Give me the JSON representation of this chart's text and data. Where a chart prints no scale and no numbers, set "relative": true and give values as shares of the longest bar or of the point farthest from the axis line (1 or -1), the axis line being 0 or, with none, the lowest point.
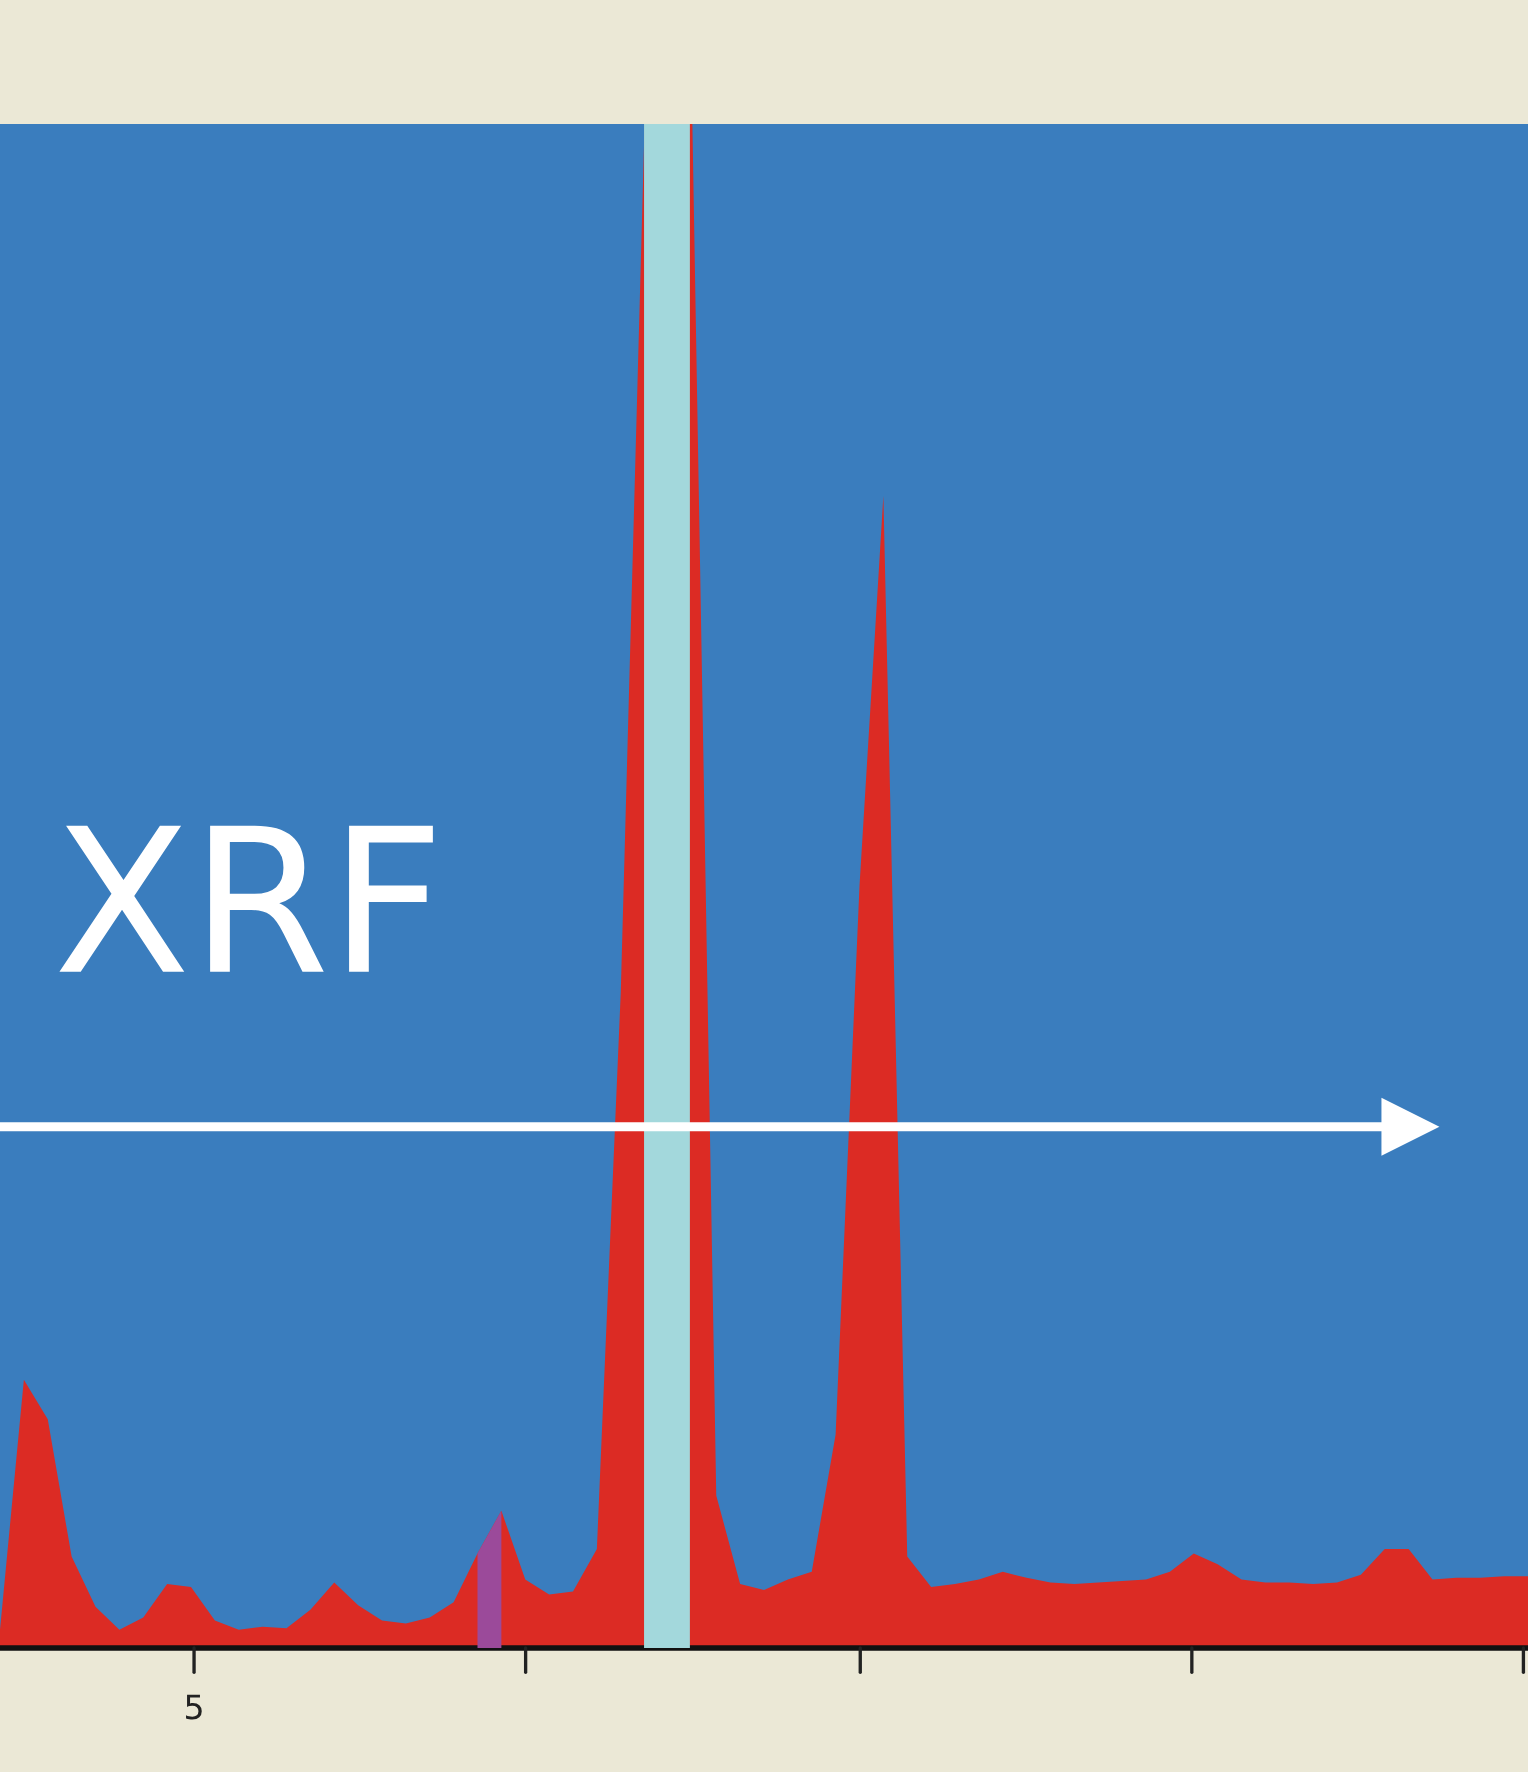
{
  "chart_data": {
    "type": "area",
    "relative": true,
    "categories": [
      null,
      null,
      null,
      null,
      null,
      null,
      null,
      null,
      null,
      null,
      null,
      null,
      null,
      null,
      null,
      null,
      null,
      null,
      null,
      null,
      null,
      null,
      null,
      null,
      null,
      null,
      null,
      null,
      null,
      null,
      null,
      null,
      null,
      null,
      null,
      null,
      null,
      null,
      null,
      null,
      null,
      null,
      null,
      null,
      null,
      null,
      null,
      null,
      null,
      null,
      null,
      null,
      null,
      null,
      null,
      null,
      null,
      null,
      null,
      null,
      null,
      null,
      null,
      null,
      null
    ],
    "series": [
      {
        "color": "#dc2b24",
        "values": [
          0.012,
          0.176,
          0.15,
          0.06,
          0.027,
          0.012,
          0.02,
          0.042,
          0.04,
          0.018,
          0.012,
          0.014,
          0.013,
          0.025,
          0.043,
          0.028,
          0.018,
          0.016,
          0.02,
          0.03,
          0.062,
          0.09,
          0.045,
          0.035,
          0.037,
          0.065,
          0.43,
          1,
          1,
          1,
          0.1,
          0.042,
          0.038,
          0.045,
          0.05,
          0.14,
          0.5,
          0.756,
          0.06,
          0.04,
          0.042,
          0.045,
          0.05,
          0.046,
          0.043,
          0.042,
          0.043,
          0.044,
          0.045,
          0.05,
          0.062,
          0.055,
          0.045,
          0.043,
          0.043,
          0.042,
          0.043,
          0.048,
          0.065,
          0.065,
          0.045,
          0.046,
          0.046,
          0.047,
          0.047
        ]
      },
      {
        "color": "#9b4a9a",
        "values": [
          null,
          null,
          null,
          null,
          null,
          null,
          null,
          null,
          null,
          null,
          null,
          null,
          null,
          null,
          null,
          null,
          null,
          null,
          null,
          null,
          0.062,
          0.09,
          null,
          null,
          null,
          null,
          null,
          null,
          null,
          null,
          null,
          null,
          null,
          null,
          null,
          null,
          null,
          null,
          null,
          null,
          null,
          null,
          null,
          null,
          null,
          null,
          null,
          null,
          null,
          null,
          null,
          null,
          null,
          null,
          null,
          null,
          null,
          null,
          null,
          null,
          null,
          null,
          null,
          null,
          null
        ]
      }
    ],
    "annotations": [
      "XRF",
      "5"
    ]
  }
}
